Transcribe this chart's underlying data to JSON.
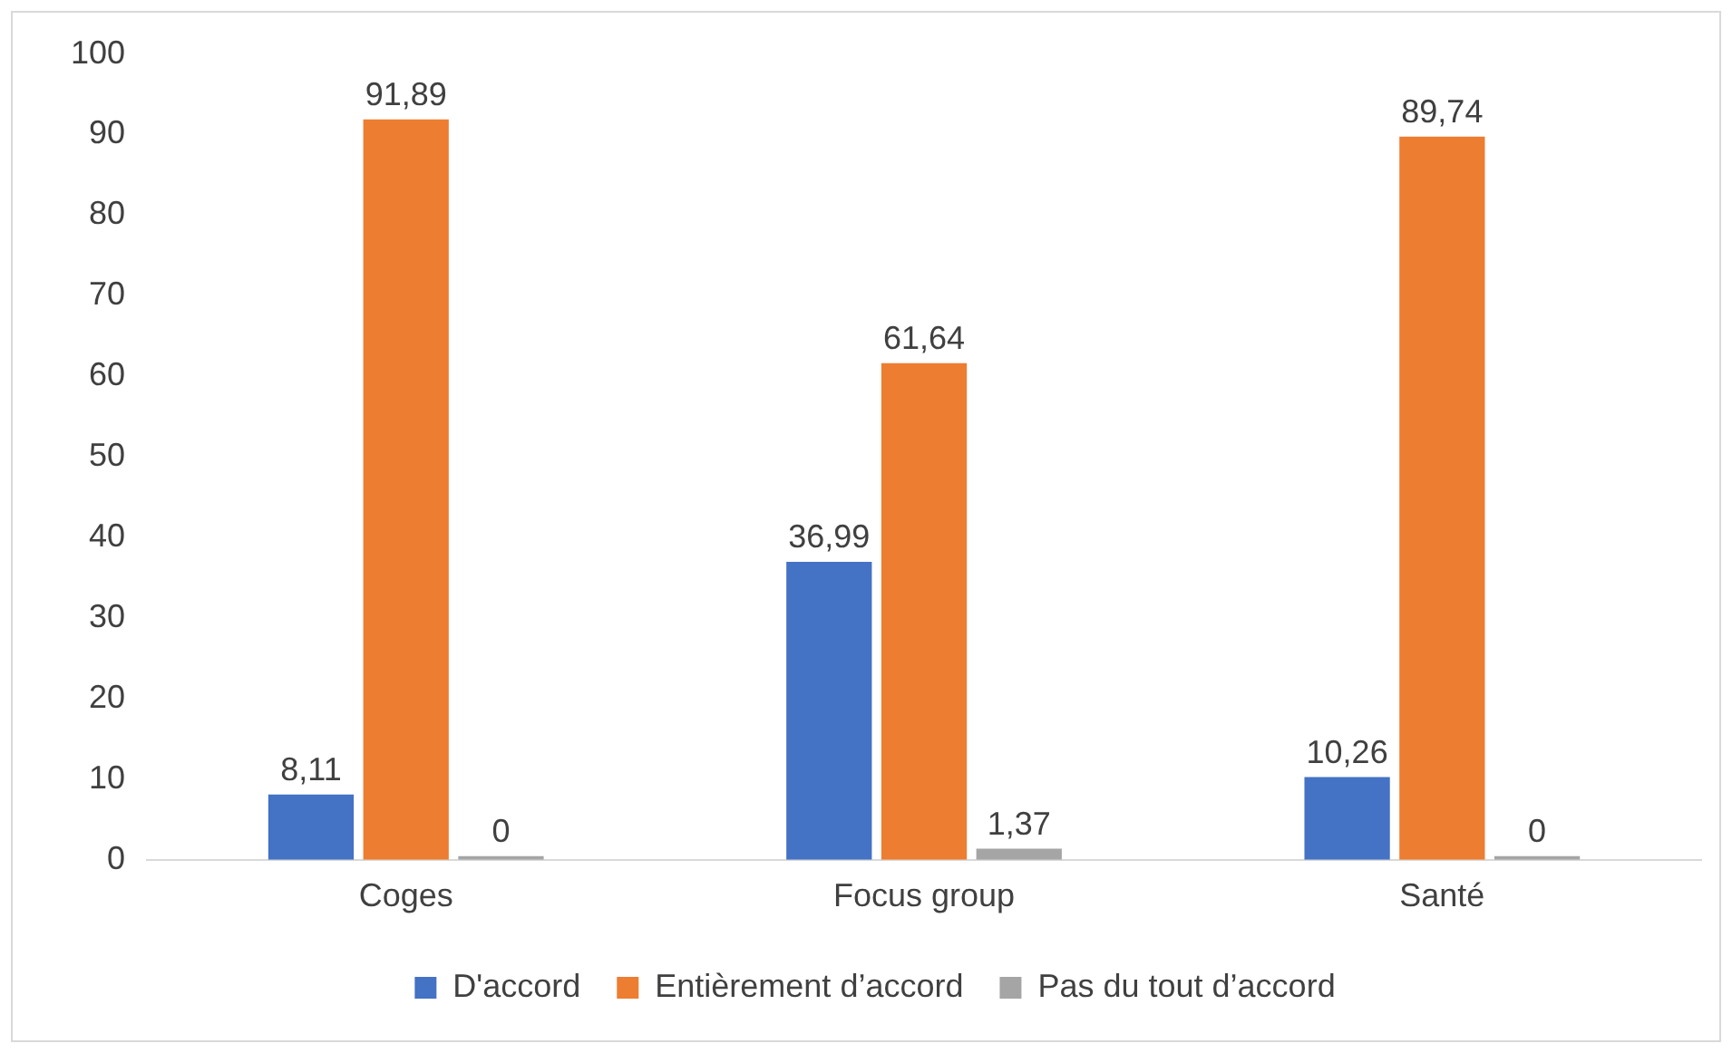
{
  "chart_data": {
    "type": "bar",
    "categories": [
      "Coges",
      "Focus group",
      "Santé"
    ],
    "series": [
      {
        "name": "D'accord",
        "color": "#4472c4",
        "values": [
          8.11,
          36.99,
          10.26
        ],
        "value_labels": [
          "8,11",
          "36,99",
          "10,26"
        ]
      },
      {
        "name": "Entièrement d’accord",
        "color": "#ed7d31",
        "values": [
          91.89,
          61.64,
          89.74
        ],
        "value_labels": [
          "91,89",
          "61,64",
          "89,74"
        ]
      },
      {
        "name": "Pas du tout d’accord",
        "color": "#a5a5a5",
        "values": [
          0,
          1.37,
          0
        ],
        "value_labels": [
          "0",
          "1,37",
          "0"
        ]
      }
    ],
    "ylim": [
      0,
      100
    ],
    "yticks": [
      0,
      10,
      20,
      30,
      40,
      50,
      60,
      70,
      80,
      90,
      100
    ],
    "grid": false,
    "legend": "bottom"
  }
}
